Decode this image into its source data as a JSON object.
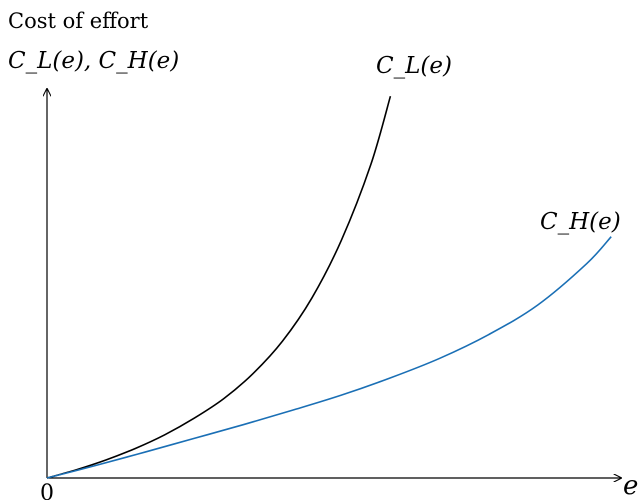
{
  "chart_data": {
    "type": "line",
    "ylabel_line1": "Cost of effort",
    "ylabel_line2": "C_L(e), C_H(e)",
    "xlabel": "e",
    "origin_label": "0",
    "series": [
      {
        "name": "C_L(e)",
        "color": "#000000",
        "x": [
          0,
          0.6,
          1.2,
          1.8,
          2.4,
          3.0,
          3.6,
          4.2,
          4.8,
          5.4,
          6.0,
          6.6,
          7.0
        ],
        "y": [
          0,
          0.23,
          0.5,
          0.82,
          1.2,
          1.66,
          2.2,
          2.9,
          3.8,
          5.0,
          6.6,
          8.7,
          10.6
        ]
      },
      {
        "name": "C_H(e)",
        "color": "#1a6fb5",
        "x": [
          0,
          1.0,
          2.0,
          3.0,
          4.0,
          5.0,
          6.0,
          7.0,
          8.0,
          9.0,
          10.0,
          11.0,
          11.5
        ],
        "y": [
          0,
          0.35,
          0.72,
          1.1,
          1.48,
          1.88,
          2.3,
          2.78,
          3.32,
          3.98,
          4.8,
          5.95,
          6.7
        ]
      }
    ],
    "series_labels": [
      "C_L(e)",
      "C_H(e)"
    ],
    "xlim": [
      0,
      11.7
    ],
    "ylim": [
      0,
      10.8
    ],
    "grid": false,
    "legend": "none"
  }
}
